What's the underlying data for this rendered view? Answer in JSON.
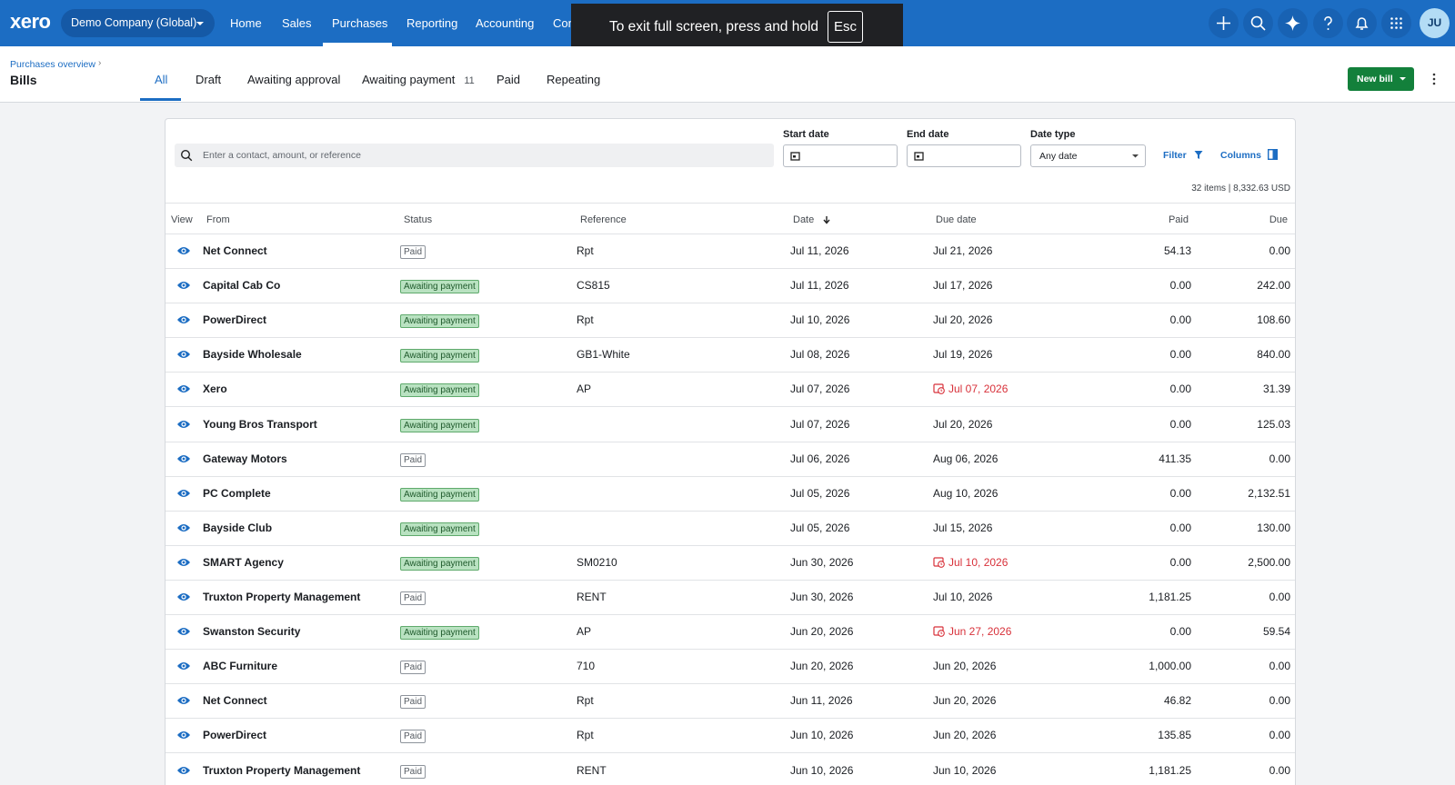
{
  "nav": {
    "logo": "xero",
    "organisation": "Demo Company (Global)",
    "items": [
      "Home",
      "Sales",
      "Purchases",
      "Reporting",
      "Accounting",
      "Con"
    ],
    "active": "Purchases",
    "avatar": "JU"
  },
  "overlay": {
    "message": "To exit full screen, press and hold",
    "key": "Esc"
  },
  "header": {
    "breadcrumb": "Purchases overview",
    "title": "Bills",
    "tabs": [
      {
        "label": "All"
      },
      {
        "label": "Draft"
      },
      {
        "label": "Awaiting approval"
      },
      {
        "label": "Awaiting payment",
        "count": 11
      },
      {
        "label": "Paid"
      },
      {
        "label": "Repeating"
      }
    ],
    "active_tab": "All",
    "new_button": "New bill"
  },
  "filters": {
    "search_placeholder": "Enter a contact, amount, or reference",
    "start_date": "Start date",
    "end_date": "End date",
    "date_type": "Date type",
    "date_type_value": "Any date",
    "filter": "Filter",
    "columns": "Columns",
    "summary": "32 items | 8,332.63 USD"
  },
  "table": {
    "headers": [
      "View",
      "From",
      "Status",
      "Reference",
      "Date",
      "Due date",
      "Paid",
      "Due"
    ],
    "rows": [
      {
        "from": "Net Connect",
        "status": "Paid",
        "reference": "Rpt",
        "date": "Jul 11, 2026",
        "due_date": "Jul 21, 2026",
        "paid": "54.13",
        "due": "0.00"
      },
      {
        "from": "Capital Cab Co",
        "status": "Awaiting payment",
        "reference": "CS815",
        "date": "Jul 11, 2026",
        "due_date": "Jul 17, 2026",
        "paid": "0.00",
        "due": "242.00"
      },
      {
        "from": "PowerDirect",
        "status": "Awaiting payment",
        "reference": "Rpt",
        "date": "Jul 10, 2026",
        "due_date": "Jul 20, 2026",
        "paid": "0.00",
        "due": "108.60"
      },
      {
        "from": "Bayside Wholesale",
        "status": "Awaiting payment",
        "reference": "GB1-White",
        "date": "Jul 08, 2026",
        "due_date": "Jul 19, 2026",
        "paid": "0.00",
        "due": "840.00"
      },
      {
        "from": "Xero",
        "status": "Awaiting payment",
        "reference": "AP",
        "date": "Jul 07, 2026",
        "due_date": "Jul 07, 2026",
        "overdue": true,
        "paid": "0.00",
        "due": "31.39"
      },
      {
        "from": "Young Bros Transport",
        "status": "Awaiting payment",
        "date": "Jul 07, 2026",
        "due_date": "Jul 20, 2026",
        "paid": "0.00",
        "due": "125.03"
      },
      {
        "from": "Gateway Motors",
        "status": "Paid",
        "date": "Jul 06, 2026",
        "due_date": "Aug 06, 2026",
        "paid": "411.35",
        "due": "0.00"
      },
      {
        "from": "PC Complete",
        "status": "Awaiting payment",
        "date": "Jul 05, 2026",
        "due_date": "Aug 10, 2026",
        "paid": "0.00",
        "due": "2,132.51"
      },
      {
        "from": "Bayside Club",
        "status": "Awaiting payment",
        "date": "Jul 05, 2026",
        "due_date": "Jul 15, 2026",
        "paid": "0.00",
        "due": "130.00"
      },
      {
        "from": "SMART Agency",
        "status": "Awaiting payment",
        "reference": "SM0210",
        "date": "Jun 30, 2026",
        "due_date": "Jul 10, 2026",
        "overdue": true,
        "paid": "0.00",
        "due": "2,500.00"
      },
      {
        "from": "Truxton Property Management",
        "status": "Paid",
        "reference": "RENT",
        "date": "Jun 30, 2026",
        "due_date": "Jul 10, 2026",
        "paid": "1,181.25",
        "due": "0.00"
      },
      {
        "from": "Swanston Security",
        "status": "Awaiting payment",
        "reference": "AP",
        "date": "Jun 20, 2026",
        "due_date": "Jun 27, 2026",
        "overdue": true,
        "paid": "0.00",
        "due": "59.54"
      },
      {
        "from": "ABC Furniture",
        "status": "Paid",
        "reference": "710",
        "date": "Jun 20, 2026",
        "due_date": "Jun 20, 2026",
        "paid": "1,000.00",
        "due": "0.00"
      },
      {
        "from": "Net Connect",
        "status": "Paid",
        "reference": "Rpt",
        "date": "Jun 11, 2026",
        "due_date": "Jun 20, 2026",
        "paid": "46.82",
        "due": "0.00"
      },
      {
        "from": "PowerDirect",
        "status": "Paid",
        "reference": "Rpt",
        "date": "Jun 10, 2026",
        "due_date": "Jun 20, 2026",
        "paid": "135.85",
        "due": "0.00"
      },
      {
        "from": "Truxton Property Management",
        "status": "Paid",
        "reference": "RENT",
        "date": "Jun 10, 2026",
        "due_date": "Jun 10, 2026",
        "paid": "1,181.25",
        "due": "0.00"
      }
    ]
  }
}
